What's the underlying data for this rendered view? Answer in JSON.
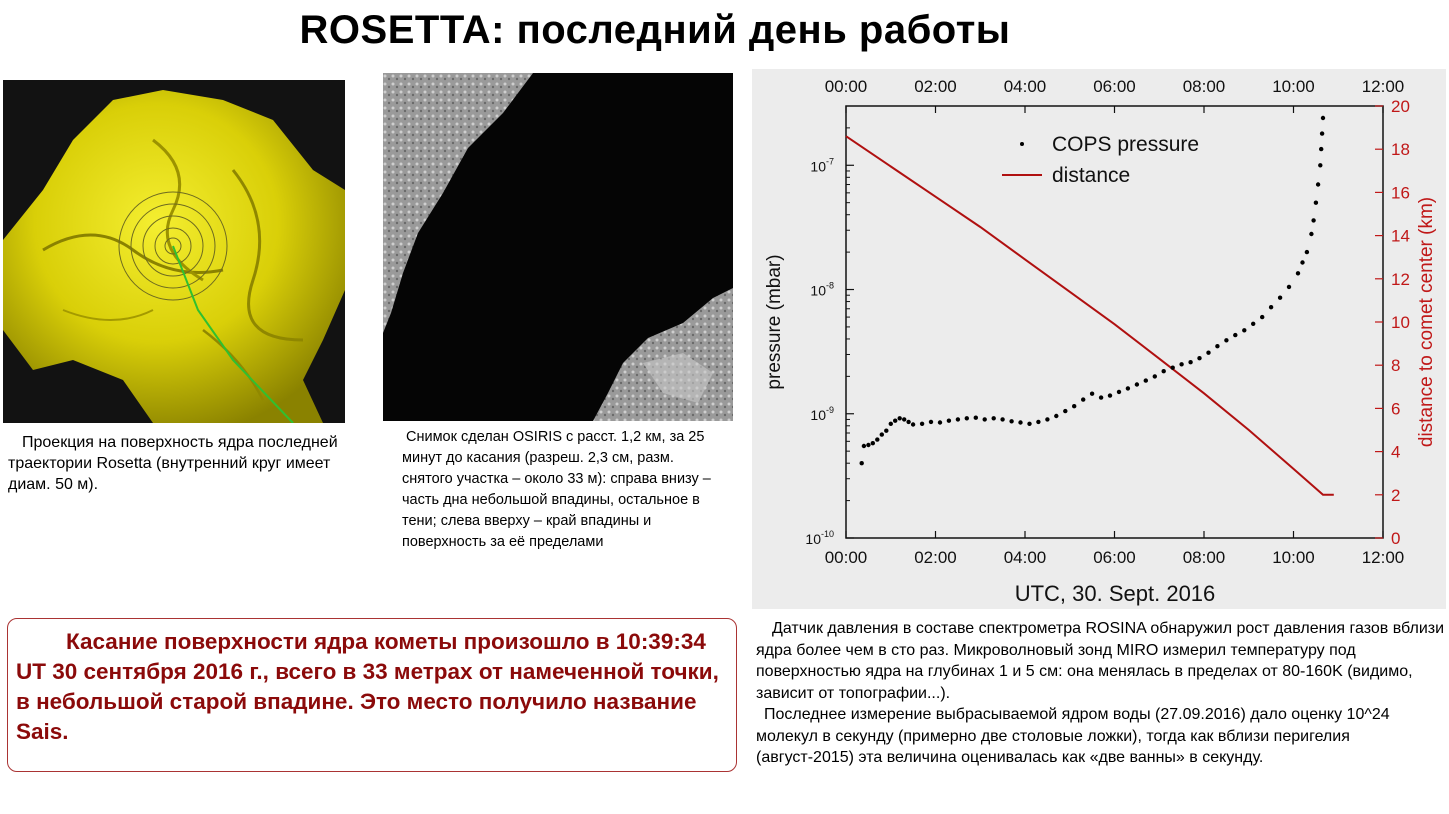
{
  "title": "ROSETTA: последний день работы",
  "left_image": {
    "caption": "Проекция на поверхность ядра последней траектории Rosetta (внутренний круг имеет диам. 50 м)."
  },
  "mid_image": {
    "caption": "Снимок сделан OSIRIS с расст. 1,2 км, за 25 минут до касания (разреш. 2,3 см, разм. снятого участка – около 33 м): справа внизу – часть дна небольшой впадины, остальное в тени; слева вверху – край впадины и поверхность за её пределами"
  },
  "highlight": {
    "text": "Касание поверхности ядра кометы произошло в 10:39:34 UT 30 сентября 2016 г., всего в 33 метрах от намеченной точки, в небольшой старой впадине. Это место получило название Sais."
  },
  "right_caption": {
    "p1": "Датчик давления в составе спектрометра ROSINA обнаружил рост давления газов вблизи ядра более чем в сто раз. Микроволновый зонд MIRO измерил температуру под поверхностью ядра на глубинах 1 и 5 см: она менялась в пределах от 80-160K (видимо, зависит от топографии...).",
    "p2": "Последнее измерение выбрасываемой ядром воды (27.09.2016) дало оценку 10^24 молекул в секунду (примерно две столовые ложки), тогда как вблизи перигелия (август-2015) эта величина оценивалась как «две ванны» в секунду."
  },
  "colors": {
    "highlight_text": "#8b0a0a",
    "distance_line": "#b01010",
    "right_axis": "#c01818",
    "comet_yellow": "#e8e000",
    "chart_bg": "#ececec"
  },
  "chart_data": {
    "type": "line",
    "xlabel": "UTC, 30. Sept. 2016",
    "ylabel": "pressure (mbar)",
    "y2label": "distance to comet center (km)",
    "x_ticks": [
      "00:00",
      "02:00",
      "04:00",
      "06:00",
      "08:00",
      "10:00",
      "12:00"
    ],
    "xlim": [
      0,
      12
    ],
    "ylim_log": [
      1e-10,
      3e-07
    ],
    "y_ticks": [
      {
        "exp": -7,
        "label_base": "10",
        "label_exp": "-7"
      },
      {
        "exp": -8,
        "label_base": "10",
        "label_exp": "-8"
      },
      {
        "exp": -9,
        "label_base": "10",
        "label_exp": "-9"
      },
      {
        "exp": -10,
        "label_base": "10",
        "label_exp": "-10"
      }
    ],
    "y2lim": [
      0,
      20
    ],
    "y2_ticks": [
      "0",
      "2",
      "4",
      "6",
      "8",
      "10",
      "12",
      "14",
      "16",
      "18",
      "20"
    ],
    "legend": [
      "COPS pressure",
      "distance"
    ],
    "legend_position": "top-left",
    "series": [
      {
        "name": "COPS pressure",
        "axis": "left",
        "style": "points",
        "x": [
          0.35,
          0.4,
          0.5,
          0.6,
          0.7,
          0.8,
          0.9,
          1.0,
          1.1,
          1.2,
          1.3,
          1.4,
          1.5,
          1.7,
          1.9,
          2.1,
          2.3,
          2.5,
          2.7,
          2.9,
          3.1,
          3.3,
          3.5,
          3.7,
          3.9,
          4.1,
          4.3,
          4.5,
          4.7,
          4.9,
          5.1,
          5.3,
          5.5,
          5.7,
          5.9,
          6.1,
          6.3,
          6.5,
          6.7,
          6.9,
          7.1,
          7.3,
          7.5,
          7.7,
          7.9,
          8.1,
          8.3,
          8.5,
          8.7,
          8.9,
          9.1,
          9.3,
          9.5,
          9.7,
          9.9,
          10.1,
          10.2,
          10.3,
          10.4,
          10.45,
          10.5,
          10.55,
          10.6,
          10.62,
          10.64,
          10.66
        ],
        "y": [
          4e-10,
          5.5e-10,
          5.6e-10,
          5.8e-10,
          6.2e-10,
          6.8e-10,
          7.3e-10,
          8.3e-10,
          8.8e-10,
          9.2e-10,
          9e-10,
          8.6e-10,
          8.2e-10,
          8.3e-10,
          8.6e-10,
          8.5e-10,
          8.8e-10,
          9e-10,
          9.2e-10,
          9.3e-10,
          9e-10,
          9.2e-10,
          9e-10,
          8.7e-10,
          8.5e-10,
          8.3e-10,
          8.6e-10,
          9e-10,
          9.6e-10,
          1.05e-09,
          1.15e-09,
          1.3e-09,
          1.45e-09,
          1.35e-09,
          1.4e-09,
          1.5e-09,
          1.6e-09,
          1.72e-09,
          1.85e-09,
          2e-09,
          2.2e-09,
          2.35e-09,
          2.5e-09,
          2.6e-09,
          2.8e-09,
          3.1e-09,
          3.5e-09,
          3.9e-09,
          4.3e-09,
          4.7e-09,
          5.3e-09,
          6e-09,
          7.2e-09,
          8.6e-09,
          1.05e-08,
          1.35e-08,
          1.65e-08,
          2e-08,
          2.8e-08,
          3.6e-08,
          5e-08,
          7e-08,
          1e-07,
          1.35e-07,
          1.8e-07,
          2.4e-07
        ]
      },
      {
        "name": "distance",
        "axis": "right",
        "style": "line",
        "x": [
          0.0,
          1.0,
          2.0,
          3.0,
          4.0,
          5.0,
          6.0,
          7.0,
          8.0,
          9.0,
          10.0,
          10.66,
          10.9
        ],
        "y": [
          18.6,
          17.2,
          15.8,
          14.4,
          12.9,
          11.4,
          9.9,
          8.3,
          6.7,
          5.0,
          3.2,
          2.0,
          2.0
        ]
      }
    ]
  }
}
